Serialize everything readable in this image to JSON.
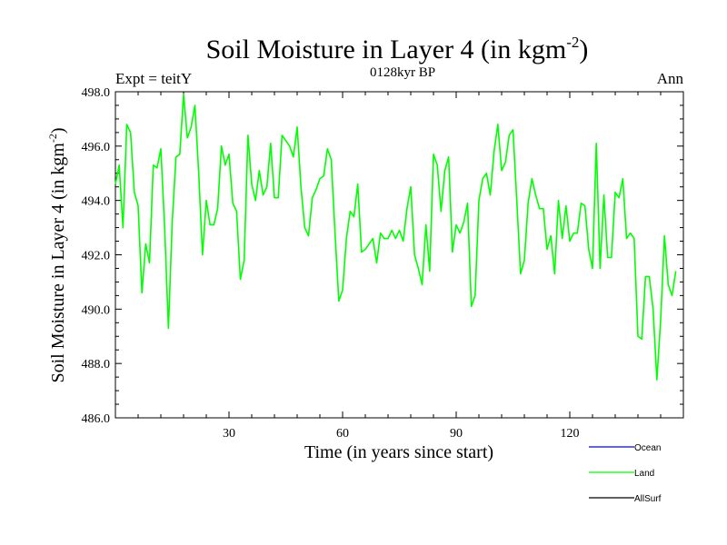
{
  "chart_data": {
    "type": "line",
    "title": "Soil Moisture in Layer 4 (in kgm",
    "title_exp": "-2",
    "title_tail": ")",
    "subtitle_left": "Expt = teitY",
    "subtitle_center": "0128kyr BP",
    "subtitle_right": "Ann",
    "xlabel": "Time (in years since start)",
    "ylabel": "Soil Moisture in Layer 4 (in kgm",
    "ylabel_exp": "-2",
    "ylabel_tail": ")",
    "xlim": [
      0,
      150
    ],
    "ylim": [
      486.0,
      498.0
    ],
    "xticks": [
      30,
      60,
      90,
      120
    ],
    "yticks": [
      486.0,
      488.0,
      490.0,
      492.0,
      494.0,
      496.0,
      498.0
    ],
    "ytick_labels": [
      "486.0",
      "488.0",
      "490.0",
      "492.0",
      "494.0",
      "496.0",
      "498.0"
    ],
    "xtick_labels": [
      "30",
      "60",
      "90",
      "120"
    ],
    "legend": [
      {
        "name": "Ocean",
        "color": "#0000ff"
      },
      {
        "name": "Land",
        "color": "#00ff00"
      },
      {
        "name": "AllSurf",
        "color": "#000000"
      }
    ],
    "series": [
      {
        "name": "Land",
        "color": "#00ff00",
        "x_start": 0,
        "x_step": 1,
        "values": [
          494.6,
          495.3,
          493.0,
          496.8,
          496.5,
          494.3,
          493.8,
          490.6,
          492.4,
          491.7,
          495.3,
          495.2,
          495.9,
          493.0,
          489.3,
          493.2,
          495.6,
          495.7,
          497.9,
          496.3,
          496.7,
          497.5,
          495.0,
          492.0,
          494.0,
          493.1,
          493.1,
          493.7,
          496.0,
          495.3,
          495.7,
          493.9,
          493.6,
          491.1,
          491.8,
          496.4,
          494.6,
          494.0,
          495.1,
          494.2,
          494.5,
          496.1,
          494.1,
          494.1,
          496.4,
          496.2,
          496.0,
          495.6,
          496.7,
          494.5,
          493.0,
          492.7,
          494.1,
          494.4,
          494.8,
          494.9,
          495.9,
          495.5,
          492.8,
          490.3,
          490.7,
          492.6,
          493.6,
          493.4,
          494.6,
          492.1,
          492.2,
          492.4,
          492.6,
          491.7,
          492.8,
          492.6,
          492.6,
          492.9,
          492.6,
          492.9,
          492.5,
          493.7,
          494.5,
          492.0,
          491.5,
          490.9,
          493.1,
          491.4,
          495.7,
          495.3,
          493.6,
          495.1,
          495.6,
          492.1,
          493.1,
          492.8,
          493.2,
          493.9,
          490.1,
          490.5,
          494.0,
          494.8,
          495.0,
          494.2,
          495.8,
          496.8,
          495.1,
          495.4,
          496.4,
          496.6,
          494.0,
          491.3,
          491.8,
          493.9,
          494.8,
          494.2,
          493.7,
          493.7,
          492.2,
          492.7,
          491.3,
          494.0,
          492.6,
          493.8,
          492.5,
          492.8,
          492.8,
          493.9,
          493.8,
          492.2,
          491.5,
          496.1,
          491.5,
          494.2,
          491.9,
          491.9,
          494.3,
          494.1,
          494.8,
          492.6,
          492.8,
          492.6,
          489.0,
          488.9,
          491.2,
          491.2,
          490.0,
          487.4,
          489.6,
          492.7,
          490.9,
          490.5,
          491.4
        ]
      }
    ]
  }
}
